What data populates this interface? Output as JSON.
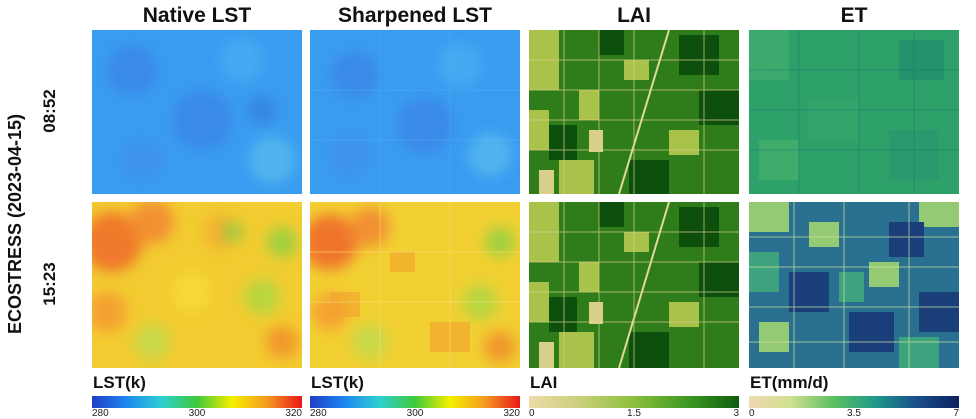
{
  "side_label": "ECOSTRESS (2023-04-15)",
  "columns": [
    {
      "title": "Native LST"
    },
    {
      "title": "Sharpened LST"
    },
    {
      "title": "LAI"
    },
    {
      "title": "ET"
    }
  ],
  "rows": [
    {
      "time": "08:52"
    },
    {
      "time": "15:23"
    }
  ],
  "colorbars": [
    {
      "label": "LST(k)",
      "ticks": [
        "280",
        "300",
        "320"
      ],
      "colors": [
        "#1f3fc8",
        "#1e88f0",
        "#2fd0d0",
        "#3ec93a",
        "#f5f000",
        "#f59a20",
        "#e81818"
      ]
    },
    {
      "label": "LST(k)",
      "ticks": [
        "280",
        "300",
        "320"
      ],
      "colors": [
        "#1f3fc8",
        "#1e88f0",
        "#2fd0d0",
        "#3ec93a",
        "#f5f000",
        "#f59a20",
        "#e81818"
      ]
    },
    {
      "label": "LAI",
      "ticks": [
        "0",
        "1.5",
        "3"
      ],
      "colors": [
        "#eedba8",
        "#c8cf78",
        "#8cbf3c",
        "#3f9a22",
        "#0f5c10"
      ]
    },
    {
      "label": "ET(mm/d)",
      "ticks": [
        "0",
        "3.5",
        "7"
      ],
      "colors": [
        "#f0d9b0",
        "#cfe090",
        "#5cc060",
        "#1e9a8a",
        "#1a4e8c",
        "#0c2060"
      ]
    }
  ]
}
